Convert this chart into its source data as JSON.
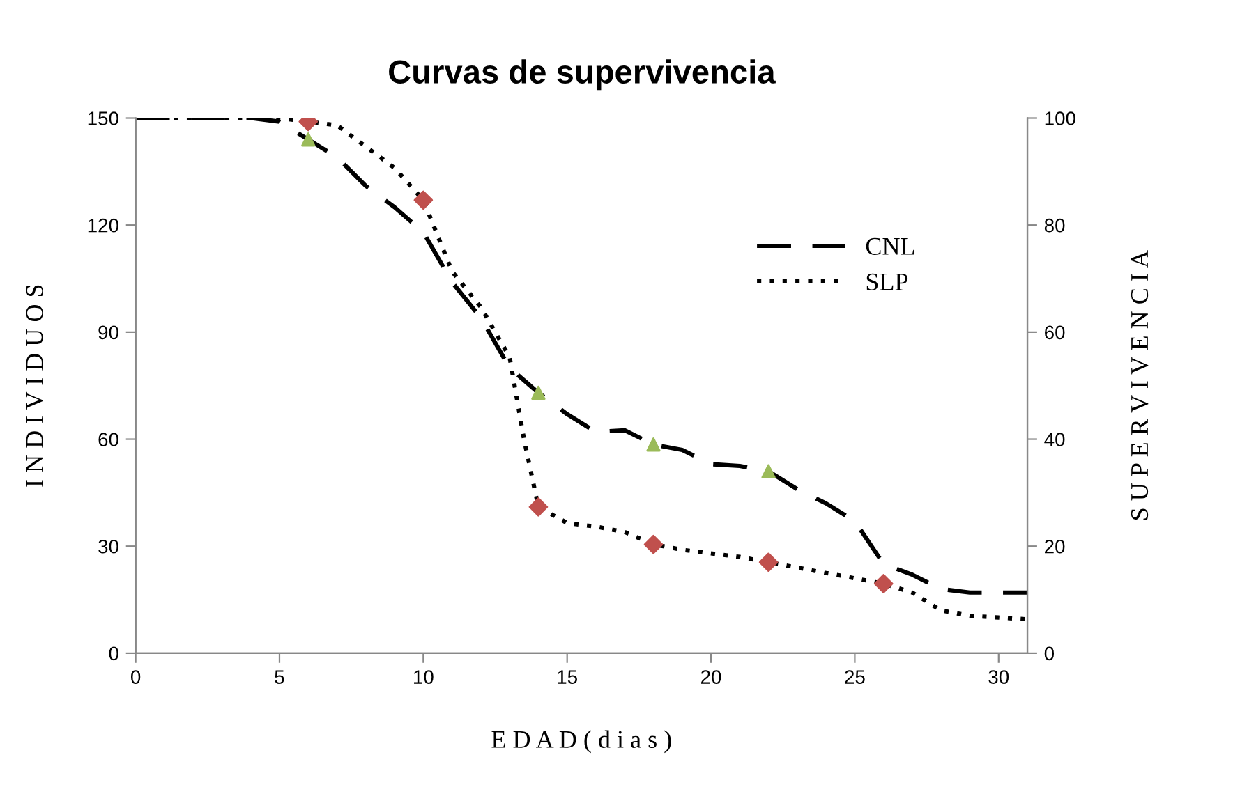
{
  "chart_data": {
    "type": "line",
    "title": "Curvas de supervivencia",
    "xlabel": "E D A D ( d i a s )",
    "ylabel": "I N D I V I D U O S",
    "y2label": "S U P E R V I V E N C I A",
    "xlim": [
      0,
      31
    ],
    "xticks": [
      0,
      5,
      10,
      15,
      20,
      25,
      30
    ],
    "ylim": [
      0,
      150
    ],
    "yticks": [
      0,
      30,
      60,
      90,
      120,
      150
    ],
    "y2lim": [
      0,
      100
    ],
    "y2ticks": [
      0,
      20,
      40,
      60,
      80,
      100
    ],
    "grid": false,
    "legend": "top right",
    "series": [
      {
        "name": "CNL",
        "line_style": "dashed",
        "color": "#000000",
        "x": [
          0,
          2,
          4,
          5,
          6,
          7,
          8,
          9,
          10,
          11,
          12,
          13,
          14,
          15,
          16,
          17,
          18,
          19,
          20,
          21,
          22,
          23,
          24,
          25,
          26,
          27,
          28,
          29,
          30,
          31
        ],
        "values": [
          150,
          150,
          150,
          149,
          144,
          139,
          131,
          125,
          118,
          104,
          94,
          80,
          73,
          67,
          62,
          62.5,
          58.5,
          57,
          53,
          52.5,
          51,
          46,
          42,
          37,
          25,
          22,
          18,
          17,
          17,
          17
        ]
      },
      {
        "name": "SLP",
        "line_style": "dotted",
        "color": "#000000",
        "x": [
          0,
          2,
          4,
          5,
          6,
          7,
          8,
          9,
          10,
          11,
          12,
          13,
          13.5,
          14,
          15,
          16,
          17,
          18,
          19,
          20,
          21,
          22,
          23,
          24,
          25,
          26,
          27,
          28,
          29,
          30,
          31
        ],
        "values": [
          150,
          150,
          150,
          150,
          149,
          148,
          142,
          136,
          127,
          107,
          97,
          83,
          60,
          41,
          36.5,
          35.5,
          34,
          30.5,
          29,
          28,
          27,
          25.5,
          24,
          22.5,
          21,
          19.5,
          17,
          12,
          10.5,
          10,
          9.5
        ]
      },
      {
        "type": "scatter",
        "marker": "triangle",
        "color": "#9bbb59",
        "x": [
          6,
          14,
          18,
          22
        ],
        "values": [
          144,
          73,
          58.5,
          51
        ]
      },
      {
        "type": "scatter",
        "marker": "diamond",
        "color": "#c0504d",
        "x": [
          6,
          10,
          14,
          18,
          22,
          26
        ],
        "values": [
          149,
          127,
          41,
          30.5,
          25.5,
          19.5
        ]
      }
    ]
  }
}
